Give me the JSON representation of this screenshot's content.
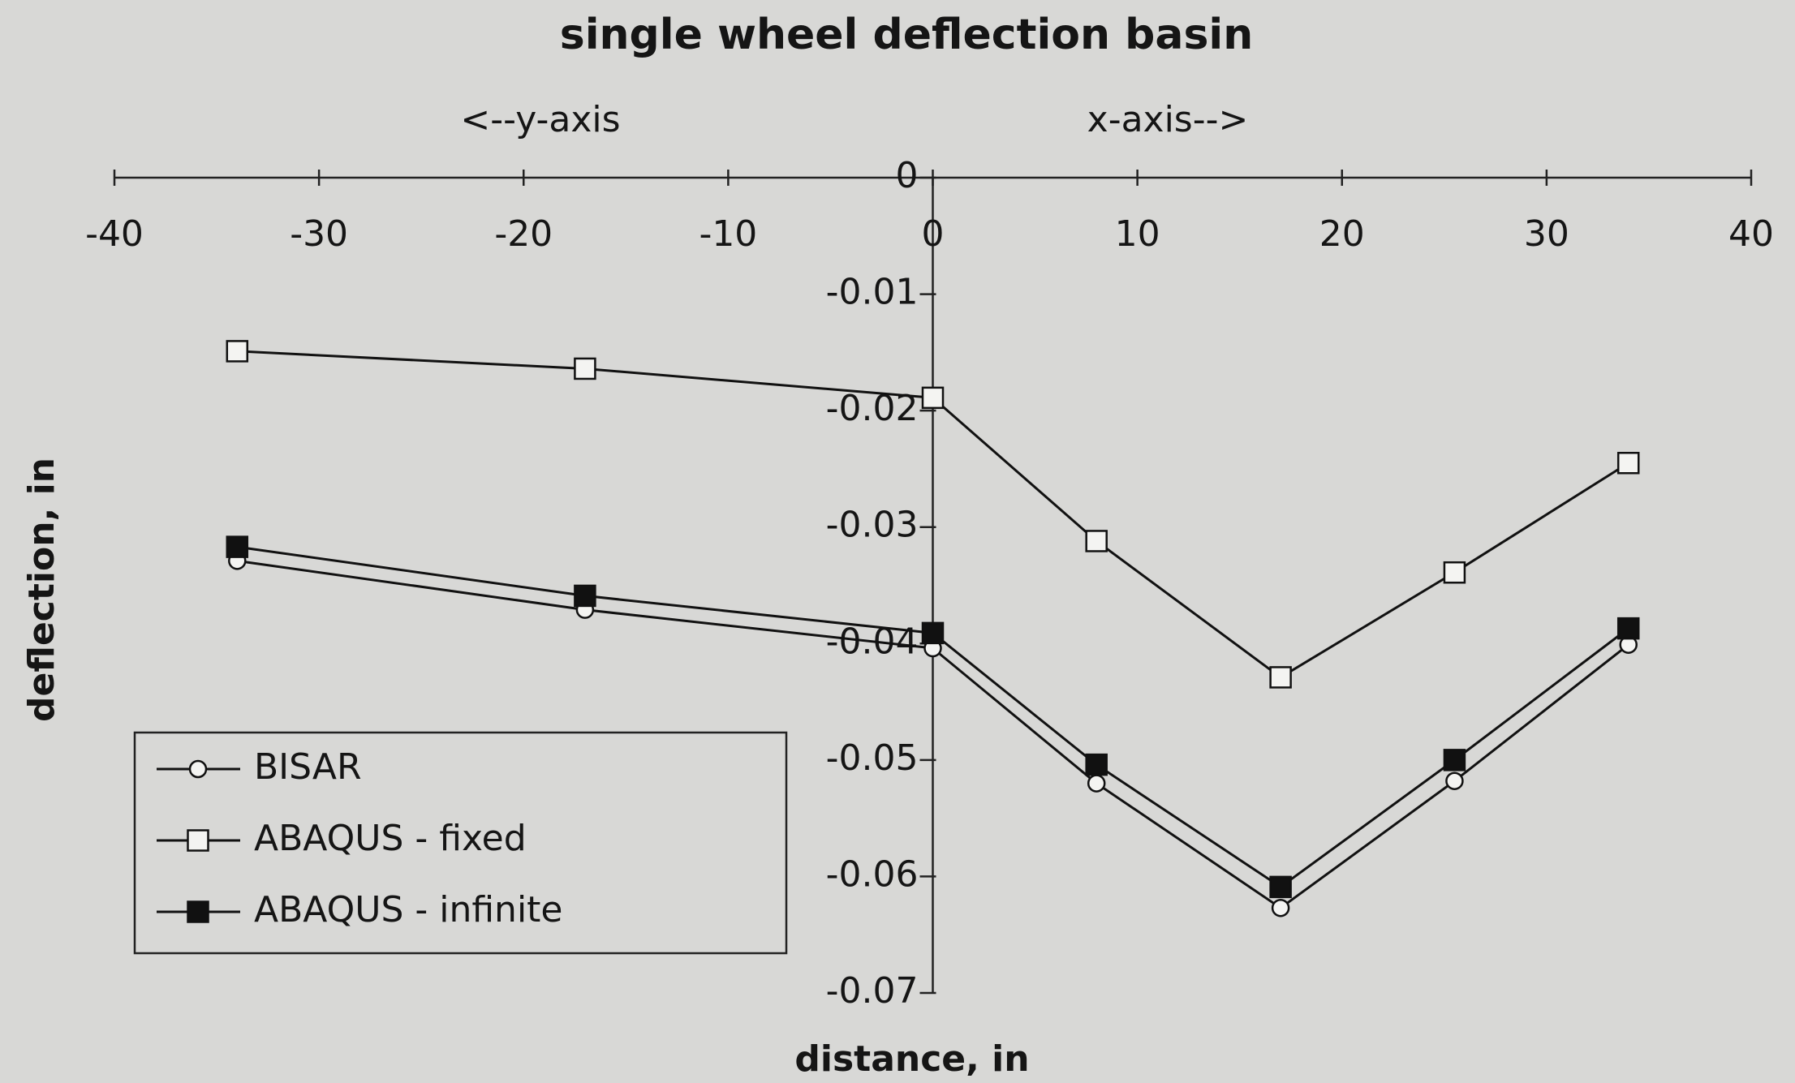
{
  "chart_data": {
    "type": "line",
    "title": "single wheel deflection basin",
    "annotations": [
      "<--y-axis",
      "x-axis-->"
    ],
    "x_label": "distance, in",
    "y_label": "deflection, in",
    "xlim": [
      -40,
      40
    ],
    "xticks": [
      -40,
      -30,
      -20,
      -10,
      0,
      10,
      20,
      30,
      40
    ],
    "ylim": [
      -0.07,
      0
    ],
    "yticks": [
      0,
      -0.01,
      -0.02,
      -0.03,
      -0.04,
      -0.05,
      -0.06,
      -0.07
    ],
    "x": [
      -34,
      -17,
      0,
      8,
      17,
      25.5,
      34
    ],
    "series": [
      {
        "name": "BISAR",
        "color": "#111111",
        "marker": "circle",
        "values": [
          -0.0329,
          -0.0371,
          -0.0404,
          -0.052,
          -0.0627,
          -0.0518,
          -0.0401
        ]
      },
      {
        "name": "ABAQUS - fixed",
        "color": "#111111",
        "marker": "square",
        "values": [
          -0.0149,
          -0.0164,
          -0.0189,
          -0.0312,
          -0.0429,
          -0.0339,
          -0.0245
        ]
      },
      {
        "name": "ABAQUS - infinite",
        "color": "#111111",
        "marker": "filled-square",
        "values": [
          -0.0317,
          -0.0359,
          -0.0391,
          -0.0504,
          -0.0609,
          -0.05,
          -0.0387
        ]
      }
    ],
    "legend": "lower-left"
  }
}
